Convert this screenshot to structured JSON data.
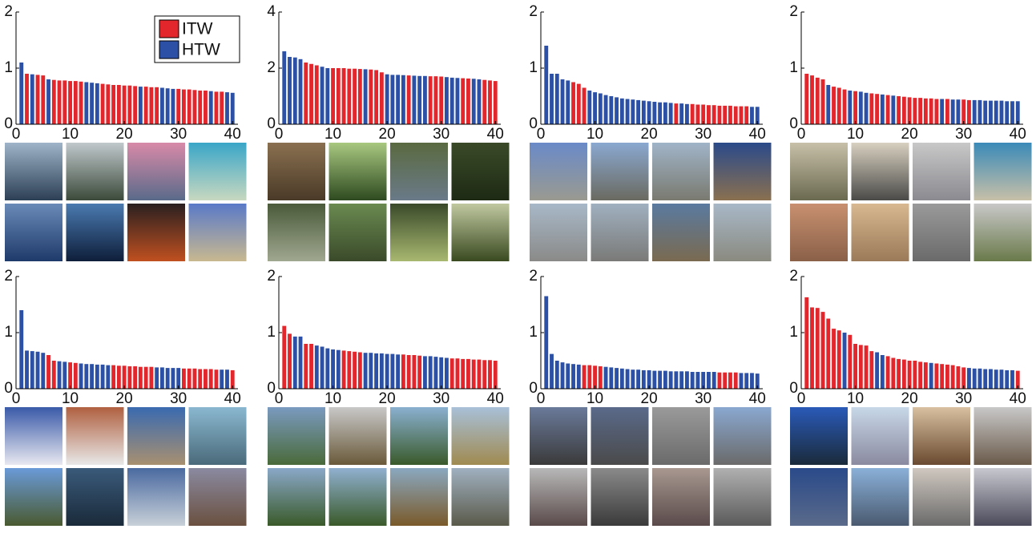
{
  "chart_data": [
    {
      "type": "bar",
      "xlim": [
        0,
        41
      ],
      "xticks": [
        0,
        10,
        20,
        30,
        40
      ],
      "ylim": [
        0,
        2
      ],
      "yticks": [
        0,
        1,
        2
      ],
      "x": [
        1,
        2,
        3,
        4,
        5,
        6,
        7,
        8,
        9,
        10,
        11,
        12,
        13,
        14,
        15,
        16,
        17,
        18,
        19,
        20,
        21,
        22,
        23,
        24,
        25,
        26,
        27,
        28,
        29,
        30,
        31,
        32,
        33,
        34,
        35,
        36,
        37,
        38,
        39,
        40
      ],
      "values": [
        1.1,
        0.9,
        0.89,
        0.88,
        0.87,
        0.8,
        0.79,
        0.78,
        0.78,
        0.77,
        0.77,
        0.76,
        0.75,
        0.74,
        0.73,
        0.72,
        0.71,
        0.7,
        0.7,
        0.69,
        0.69,
        0.68,
        0.67,
        0.67,
        0.66,
        0.66,
        0.65,
        0.64,
        0.63,
        0.63,
        0.62,
        0.62,
        0.61,
        0.6,
        0.6,
        0.59,
        0.58,
        0.58,
        0.57,
        0.56
      ],
      "colors": [
        "#2b50a5",
        "#e3262c",
        "#2b50a5",
        "#e3262c",
        "#e3262c",
        "#2b50a5",
        "#e3262c",
        "#e3262c",
        "#e3262c",
        "#e3262c",
        "#e3262c",
        "#e3262c",
        "#2b50a5",
        "#2b50a5",
        "#2b50a5",
        "#e3262c",
        "#e3262c",
        "#e3262c",
        "#e3262c",
        "#e3262c",
        "#e3262c",
        "#e3262c",
        "#2b50a5",
        "#e3262c",
        "#e3262c",
        "#e3262c",
        "#2b50a5",
        "#2b50a5",
        "#2b50a5",
        "#e3262c",
        "#e3262c",
        "#e3262c",
        "#e3262c",
        "#e3262c",
        "#e3262c",
        "#2b50a5",
        "#e3262c",
        "#e3262c",
        "#2b50a5",
        "#2b50a5"
      ],
      "legend": {
        "position": "upper right",
        "entries": [
          {
            "name": "ITW",
            "color": "#e3262c"
          },
          {
            "name": "HTW",
            "color": "#2b50a5"
          }
        ]
      }
    },
    {
      "type": "bar",
      "xlim": [
        0,
        41
      ],
      "xticks": [
        0,
        10,
        20,
        30,
        40
      ],
      "ylim": [
        0,
        4
      ],
      "yticks": [
        0,
        2,
        4
      ],
      "x": [
        1,
        2,
        3,
        4,
        5,
        6,
        7,
        8,
        9,
        10,
        11,
        12,
        13,
        14,
        15,
        16,
        17,
        18,
        19,
        20,
        21,
        22,
        23,
        24,
        25,
        26,
        27,
        28,
        29,
        30,
        31,
        32,
        33,
        34,
        35,
        36,
        37,
        38,
        39,
        40
      ],
      "values": [
        2.6,
        2.4,
        2.38,
        2.32,
        2.2,
        2.15,
        2.1,
        2.05,
        2.0,
        2.0,
        2.0,
        2.0,
        1.98,
        1.98,
        1.97,
        1.96,
        1.95,
        1.93,
        1.85,
        1.78,
        1.76,
        1.76,
        1.75,
        1.74,
        1.73,
        1.72,
        1.72,
        1.71,
        1.71,
        1.7,
        1.68,
        1.66,
        1.65,
        1.64,
        1.63,
        1.62,
        1.6,
        1.58,
        1.56,
        1.54
      ],
      "colors": [
        "#2b50a5",
        "#2b50a5",
        "#2b50a5",
        "#2b50a5",
        "#e3262c",
        "#e3262c",
        "#e3262c",
        "#2b50a5",
        "#2b50a5",
        "#e3262c",
        "#e3262c",
        "#e3262c",
        "#e3262c",
        "#e3262c",
        "#e3262c",
        "#2b50a5",
        "#e3262c",
        "#e3262c",
        "#e3262c",
        "#2b50a5",
        "#2b50a5",
        "#2b50a5",
        "#2b50a5",
        "#e3262c",
        "#2b50a5",
        "#2b50a5",
        "#2b50a5",
        "#e3262c",
        "#e3262c",
        "#e3262c",
        "#2b50a5",
        "#2b50a5",
        "#2b50a5",
        "#e3262c",
        "#e3262c",
        "#2b50a5",
        "#2b50a5",
        "#e3262c",
        "#e3262c",
        "#e3262c"
      ]
    },
    {
      "type": "bar",
      "xlim": [
        0,
        41
      ],
      "xticks": [
        0,
        10,
        20,
        30,
        40
      ],
      "ylim": [
        0,
        2
      ],
      "yticks": [
        0,
        1,
        2
      ],
      "x": [
        1,
        2,
        3,
        4,
        5,
        6,
        7,
        8,
        9,
        10,
        11,
        12,
        13,
        14,
        15,
        16,
        17,
        18,
        19,
        20,
        21,
        22,
        23,
        24,
        25,
        26,
        27,
        28,
        29,
        30,
        31,
        32,
        33,
        34,
        35,
        36,
        37,
        38,
        39,
        40
      ],
      "values": [
        1.4,
        0.9,
        0.9,
        0.8,
        0.78,
        0.75,
        0.72,
        0.65,
        0.6,
        0.57,
        0.55,
        0.52,
        0.5,
        0.48,
        0.46,
        0.45,
        0.44,
        0.43,
        0.42,
        0.41,
        0.4,
        0.39,
        0.39,
        0.38,
        0.37,
        0.37,
        0.36,
        0.36,
        0.35,
        0.35,
        0.34,
        0.34,
        0.33,
        0.33,
        0.33,
        0.32,
        0.32,
        0.32,
        0.31,
        0.31
      ],
      "colors": [
        "#2b50a5",
        "#2b50a5",
        "#2b50a5",
        "#2b50a5",
        "#2b50a5",
        "#e3262c",
        "#e3262c",
        "#e3262c",
        "#2b50a5",
        "#2b50a5",
        "#2b50a5",
        "#2b50a5",
        "#2b50a5",
        "#2b50a5",
        "#2b50a5",
        "#2b50a5",
        "#2b50a5",
        "#2b50a5",
        "#2b50a5",
        "#2b50a5",
        "#2b50a5",
        "#2b50a5",
        "#2b50a5",
        "#2b50a5",
        "#e3262c",
        "#2b50a5",
        "#2b50a5",
        "#e3262c",
        "#e3262c",
        "#e3262c",
        "#e3262c",
        "#e3262c",
        "#e3262c",
        "#e3262c",
        "#e3262c",
        "#e3262c",
        "#e3262c",
        "#e3262c",
        "#2b50a5",
        "#2b50a5"
      ]
    },
    {
      "type": "bar",
      "xlim": [
        0,
        41
      ],
      "xticks": [
        0,
        10,
        20,
        30,
        40
      ],
      "ylim": [
        0,
        2
      ],
      "yticks": [
        0,
        1,
        2
      ],
      "x": [
        1,
        2,
        3,
        4,
        5,
        6,
        7,
        8,
        9,
        10,
        11,
        12,
        13,
        14,
        15,
        16,
        17,
        18,
        19,
        20,
        21,
        22,
        23,
        24,
        25,
        26,
        27,
        28,
        29,
        30,
        31,
        32,
        33,
        34,
        35,
        36,
        37,
        38,
        39,
        40
      ],
      "values": [
        0.9,
        0.87,
        0.83,
        0.8,
        0.7,
        0.67,
        0.65,
        0.62,
        0.6,
        0.59,
        0.58,
        0.56,
        0.55,
        0.54,
        0.53,
        0.52,
        0.51,
        0.5,
        0.49,
        0.48,
        0.47,
        0.47,
        0.46,
        0.46,
        0.45,
        0.45,
        0.45,
        0.44,
        0.44,
        0.44,
        0.43,
        0.43,
        0.43,
        0.42,
        0.42,
        0.42,
        0.42,
        0.41,
        0.41,
        0.41
      ],
      "colors": [
        "#e3262c",
        "#e3262c",
        "#e3262c",
        "#e3262c",
        "#2b50a5",
        "#e3262c",
        "#e3262c",
        "#e3262c",
        "#2b50a5",
        "#e3262c",
        "#2b50a5",
        "#2b50a5",
        "#e3262c",
        "#e3262c",
        "#2b50a5",
        "#e3262c",
        "#2b50a5",
        "#e3262c",
        "#e3262c",
        "#e3262c",
        "#e3262c",
        "#e3262c",
        "#e3262c",
        "#e3262c",
        "#e3262c",
        "#2b50a5",
        "#e3262c",
        "#2b50a5",
        "#2b50a5",
        "#e3262c",
        "#e3262c",
        "#2b50a5",
        "#2b50a5",
        "#2b50a5",
        "#2b50a5",
        "#2b50a5",
        "#2b50a5",
        "#2b50a5",
        "#2b50a5",
        "#2b50a5"
      ]
    },
    {
      "type": "bar",
      "xlim": [
        0,
        41
      ],
      "xticks": [
        0,
        10,
        20,
        30,
        40
      ],
      "ylim": [
        0,
        2
      ],
      "yticks": [
        0,
        1,
        2
      ],
      "x": [
        1,
        2,
        3,
        4,
        5,
        6,
        7,
        8,
        9,
        10,
        11,
        12,
        13,
        14,
        15,
        16,
        17,
        18,
        19,
        20,
        21,
        22,
        23,
        24,
        25,
        26,
        27,
        28,
        29,
        30,
        31,
        32,
        33,
        34,
        35,
        36,
        37,
        38,
        39,
        40
      ],
      "values": [
        1.4,
        0.68,
        0.67,
        0.66,
        0.64,
        0.6,
        0.5,
        0.49,
        0.48,
        0.47,
        0.46,
        0.45,
        0.44,
        0.44,
        0.43,
        0.43,
        0.42,
        0.42,
        0.41,
        0.41,
        0.4,
        0.4,
        0.39,
        0.39,
        0.39,
        0.38,
        0.38,
        0.37,
        0.37,
        0.37,
        0.36,
        0.36,
        0.36,
        0.35,
        0.35,
        0.35,
        0.34,
        0.34,
        0.34,
        0.33
      ],
      "colors": [
        "#2b50a5",
        "#2b50a5",
        "#2b50a5",
        "#2b50a5",
        "#2b50a5",
        "#e3262c",
        "#e3262c",
        "#2b50a5",
        "#2b50a5",
        "#e3262c",
        "#e3262c",
        "#2b50a5",
        "#2b50a5",
        "#2b50a5",
        "#2b50a5",
        "#2b50a5",
        "#2b50a5",
        "#e3262c",
        "#e3262c",
        "#e3262c",
        "#e3262c",
        "#e3262c",
        "#e3262c",
        "#e3262c",
        "#e3262c",
        "#2b50a5",
        "#2b50a5",
        "#2b50a5",
        "#2b50a5",
        "#2b50a5",
        "#e3262c",
        "#e3262c",
        "#e3262c",
        "#e3262c",
        "#e3262c",
        "#e3262c",
        "#e3262c",
        "#2b50a5",
        "#2b50a5",
        "#e3262c"
      ]
    },
    {
      "type": "bar",
      "xlim": [
        0,
        41
      ],
      "xticks": [
        0,
        10,
        20,
        30,
        40
      ],
      "ylim": [
        0,
        2
      ],
      "yticks": [
        0,
        1,
        2
      ],
      "x": [
        1,
        2,
        3,
        4,
        5,
        6,
        7,
        8,
        9,
        10,
        11,
        12,
        13,
        14,
        15,
        16,
        17,
        18,
        19,
        20,
        21,
        22,
        23,
        24,
        25,
        26,
        27,
        28,
        29,
        30,
        31,
        32,
        33,
        34,
        35,
        36,
        37,
        38,
        39,
        40
      ],
      "values": [
        1.12,
        0.98,
        0.93,
        0.93,
        0.8,
        0.8,
        0.77,
        0.75,
        0.72,
        0.7,
        0.69,
        0.68,
        0.67,
        0.66,
        0.65,
        0.64,
        0.64,
        0.63,
        0.63,
        0.62,
        0.62,
        0.61,
        0.61,
        0.6,
        0.6,
        0.59,
        0.58,
        0.58,
        0.57,
        0.56,
        0.55,
        0.54,
        0.54,
        0.53,
        0.53,
        0.52,
        0.52,
        0.51,
        0.51,
        0.5
      ],
      "colors": [
        "#e3262c",
        "#e3262c",
        "#2b50a5",
        "#2b50a5",
        "#e3262c",
        "#e3262c",
        "#2b50a5",
        "#2b50a5",
        "#2b50a5",
        "#2b50a5",
        "#2b50a5",
        "#e3262c",
        "#e3262c",
        "#e3262c",
        "#e3262c",
        "#2b50a5",
        "#2b50a5",
        "#2b50a5",
        "#2b50a5",
        "#2b50a5",
        "#2b50a5",
        "#2b50a5",
        "#e3262c",
        "#e3262c",
        "#e3262c",
        "#e3262c",
        "#2b50a5",
        "#2b50a5",
        "#2b50a5",
        "#2b50a5",
        "#2b50a5",
        "#e3262c",
        "#e3262c",
        "#e3262c",
        "#e3262c",
        "#e3262c",
        "#e3262c",
        "#e3262c",
        "#e3262c",
        "#e3262c"
      ]
    },
    {
      "type": "bar",
      "xlim": [
        0,
        41
      ],
      "xticks": [
        0,
        10,
        20,
        30,
        40
      ],
      "ylim": [
        0,
        2
      ],
      "yticks": [
        0,
        1,
        2
      ],
      "x": [
        1,
        2,
        3,
        4,
        5,
        6,
        7,
        8,
        9,
        10,
        11,
        12,
        13,
        14,
        15,
        16,
        17,
        18,
        19,
        20,
        21,
        22,
        23,
        24,
        25,
        26,
        27,
        28,
        29,
        30,
        31,
        32,
        33,
        34,
        35,
        36,
        37,
        38,
        39,
        40
      ],
      "values": [
        1.65,
        0.62,
        0.5,
        0.47,
        0.45,
        0.44,
        0.43,
        0.42,
        0.42,
        0.41,
        0.4,
        0.39,
        0.38,
        0.37,
        0.36,
        0.35,
        0.34,
        0.34,
        0.33,
        0.33,
        0.32,
        0.32,
        0.32,
        0.31,
        0.31,
        0.31,
        0.31,
        0.3,
        0.3,
        0.3,
        0.3,
        0.3,
        0.29,
        0.29,
        0.29,
        0.29,
        0.28,
        0.28,
        0.28,
        0.27
      ],
      "colors": [
        "#2b50a5",
        "#2b50a5",
        "#2b50a5",
        "#2b50a5",
        "#2b50a5",
        "#2b50a5",
        "#2b50a5",
        "#e3262c",
        "#e3262c",
        "#e3262c",
        "#e3262c",
        "#2b50a5",
        "#2b50a5",
        "#2b50a5",
        "#2b50a5",
        "#2b50a5",
        "#2b50a5",
        "#2b50a5",
        "#2b50a5",
        "#2b50a5",
        "#2b50a5",
        "#2b50a5",
        "#2b50a5",
        "#2b50a5",
        "#2b50a5",
        "#2b50a5",
        "#2b50a5",
        "#2b50a5",
        "#2b50a5",
        "#2b50a5",
        "#2b50a5",
        "#2b50a5",
        "#e3262c",
        "#e3262c",
        "#e3262c",
        "#e3262c",
        "#2b50a5",
        "#2b50a5",
        "#2b50a5",
        "#2b50a5"
      ]
    },
    {
      "type": "bar",
      "xlim": [
        0,
        41
      ],
      "xticks": [
        0,
        10,
        20,
        30,
        40
      ],
      "ylim": [
        0,
        2
      ],
      "yticks": [
        0,
        1,
        2
      ],
      "x": [
        1,
        2,
        3,
        4,
        5,
        6,
        7,
        8,
        9,
        10,
        11,
        12,
        13,
        14,
        15,
        16,
        17,
        18,
        19,
        20,
        21,
        22,
        23,
        24,
        25,
        26,
        27,
        28,
        29,
        30,
        31,
        32,
        33,
        34,
        35,
        36,
        37,
        38,
        39,
        40
      ],
      "values": [
        1.63,
        1.45,
        1.44,
        1.37,
        1.25,
        1.07,
        1.04,
        1.0,
        0.96,
        0.8,
        0.78,
        0.77,
        0.67,
        0.65,
        0.6,
        0.58,
        0.55,
        0.53,
        0.52,
        0.5,
        0.5,
        0.48,
        0.47,
        0.46,
        0.45,
        0.44,
        0.43,
        0.42,
        0.4,
        0.38,
        0.37,
        0.36,
        0.36,
        0.35,
        0.35,
        0.34,
        0.34,
        0.33,
        0.33,
        0.32
      ],
      "colors": [
        "#e3262c",
        "#e3262c",
        "#e3262c",
        "#e3262c",
        "#e3262c",
        "#e3262c",
        "#e3262c",
        "#2b50a5",
        "#e3262c",
        "#e3262c",
        "#e3262c",
        "#e3262c",
        "#e3262c",
        "#2b50a5",
        "#2b50a5",
        "#e3262c",
        "#e3262c",
        "#e3262c",
        "#e3262c",
        "#e3262c",
        "#e3262c",
        "#e3262c",
        "#e3262c",
        "#2b50a5",
        "#e3262c",
        "#e3262c",
        "#e3262c",
        "#e3262c",
        "#e3262c",
        "#e3262c",
        "#2b50a5",
        "#2b50a5",
        "#2b50a5",
        "#2b50a5",
        "#2b50a5",
        "#2b50a5",
        "#2b50a5",
        "#2b50a5",
        "#2b50a5",
        "#e3262c"
      ]
    }
  ]
}
